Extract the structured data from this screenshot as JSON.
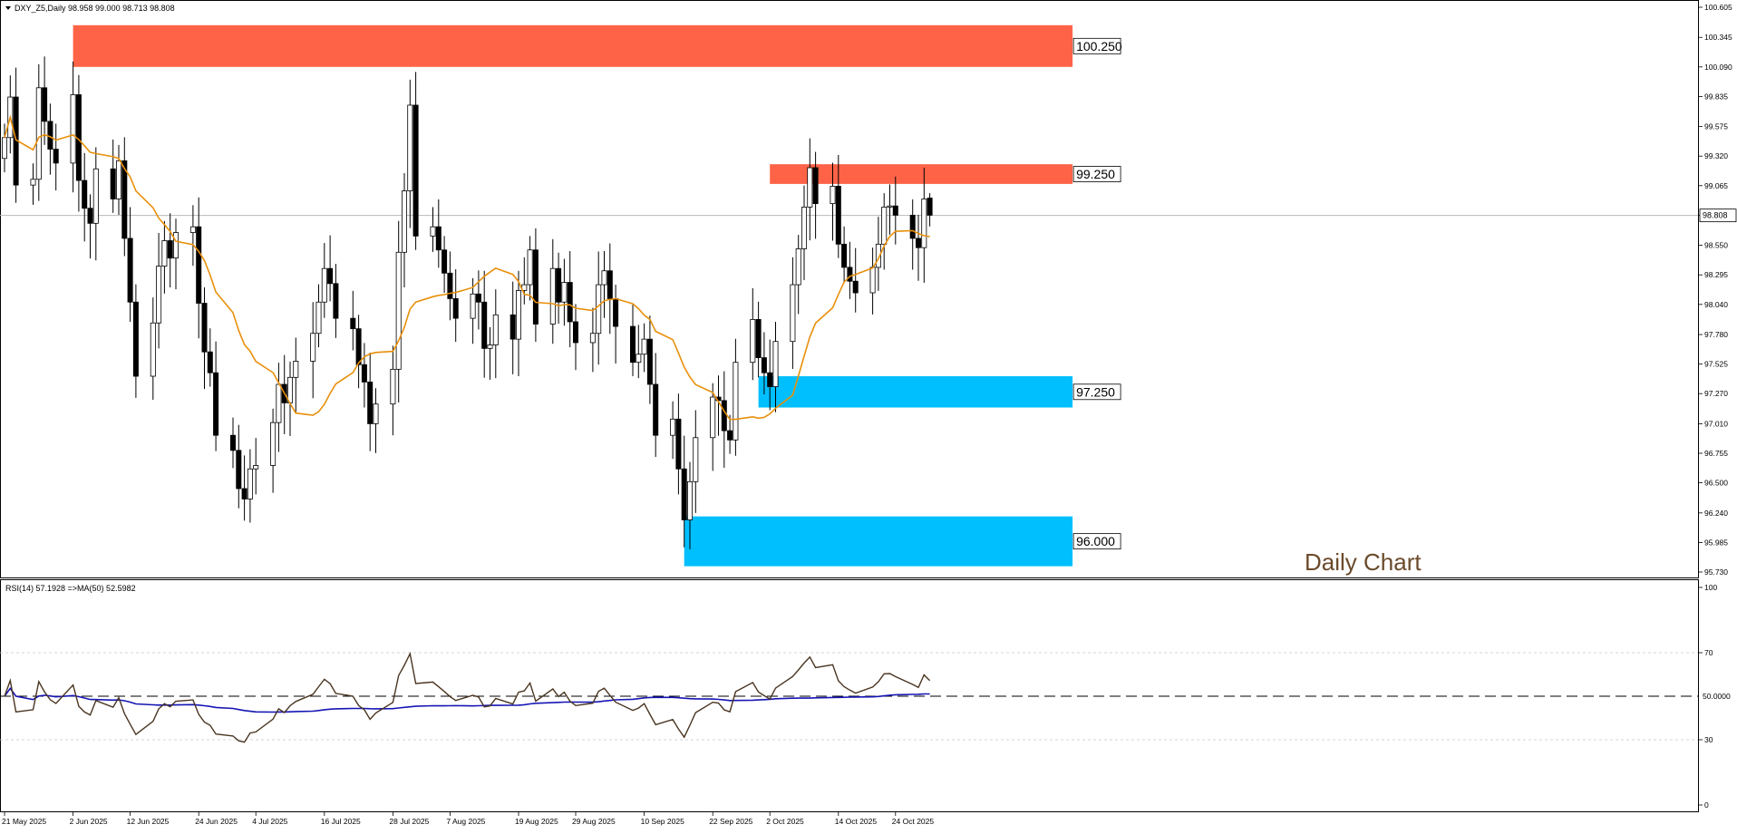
{
  "main": {
    "info": "DXY_Z5,Daily  98.958 99.000 98.713 98.808",
    "watermark": "Daily Chart",
    "current_price_label": "98.808",
    "yticks": [
      "100.605",
      "100.345",
      "100.090",
      "99.835",
      "99.575",
      "99.320",
      "99.065",
      "98.808",
      "98.550",
      "98.295",
      "98.040",
      "97.780",
      "97.525",
      "97.270",
      "97.010",
      "96.755",
      "96.500",
      "96.240",
      "95.985",
      "95.730"
    ]
  },
  "zones": [
    {
      "label": "100.250",
      "color": "#ff6347",
      "low": 100.09,
      "high": 100.45,
      "start_date": "2025-06-02",
      "end_date": "2025-11-24"
    },
    {
      "label": "99.250",
      "color": "#ff6347",
      "low": 99.08,
      "high": 99.25,
      "start_date": "2025-10-02",
      "end_date": "2025-11-24"
    },
    {
      "label": "97.250",
      "color": "#00bfff",
      "low": 97.15,
      "high": 97.42,
      "start_date": "2025-09-30",
      "end_date": "2025-11-24"
    },
    {
      "label": "96.000",
      "color": "#00bfff",
      "low": 95.78,
      "high": 96.21,
      "start_date": "2025-09-17",
      "end_date": "2025-11-24"
    }
  ],
  "rsi_panel": {
    "info": "RSI(14) 57.1928  =>MA(50) 52.5982",
    "level_label": "50.0000",
    "yticks": [
      "100",
      "70",
      "30",
      "0"
    ],
    "colors": {
      "rsi": "#4a3521",
      "ma": "#1515b5"
    }
  },
  "xaxis": {
    "labels": [
      "21 May 2025",
      "2 Jun 2025",
      "12 Jun 2025",
      "24 Jun 2025",
      "4 Jul 2025",
      "16 Jul 2025",
      "28 Jul 2025",
      "7 Aug 2025",
      "19 Aug 2025",
      "29 Aug 2025",
      "10 Sep 2025",
      "22 Sep 2025",
      "2 Oct 2025",
      "14 Oct 2025",
      "24 Oct 2025"
    ]
  },
  "colors": {
    "bull": "#ffffff",
    "bear": "#000000",
    "ma": "#e8900c",
    "grid": "#c8c8c8"
  },
  "chart_data": [
    {
      "type": "candlestick",
      "symbol": "DXY_Z5",
      "timeframe": "Daily",
      "ylim": [
        95.73,
        100.605
      ],
      "last": {
        "open": 98.958,
        "high": 99.0,
        "low": 98.713,
        "close": 98.808
      },
      "x": [
        "2025-05-21",
        "2025-05-22",
        "2025-05-23",
        "2025-05-26",
        "2025-05-27",
        "2025-05-28",
        "2025-05-29",
        "2025-05-30",
        "2025-06-02",
        "2025-06-03",
        "2025-06-04",
        "2025-06-05",
        "2025-06-06",
        "2025-06-09",
        "2025-06-10",
        "2025-06-11",
        "2025-06-12",
        "2025-06-13",
        "2025-06-16",
        "2025-06-17",
        "2025-06-18",
        "2025-06-19",
        "2025-06-20",
        "2025-06-23",
        "2025-06-24",
        "2025-06-25",
        "2025-06-26",
        "2025-06-27",
        "2025-06-30",
        "2025-07-01",
        "2025-07-02",
        "2025-07-03",
        "2025-07-04",
        "2025-07-07",
        "2025-07-08",
        "2025-07-09",
        "2025-07-10",
        "2025-07-11",
        "2025-07-14",
        "2025-07-15",
        "2025-07-16",
        "2025-07-17",
        "2025-07-18",
        "2025-07-21",
        "2025-07-22",
        "2025-07-23",
        "2025-07-24",
        "2025-07-25",
        "2025-07-28",
        "2025-07-29",
        "2025-07-30",
        "2025-07-31",
        "2025-08-01",
        "2025-08-04",
        "2025-08-05",
        "2025-08-06",
        "2025-08-07",
        "2025-08-08",
        "2025-08-11",
        "2025-08-12",
        "2025-08-13",
        "2025-08-14",
        "2025-08-15",
        "2025-08-18",
        "2025-08-19",
        "2025-08-20",
        "2025-08-21",
        "2025-08-22",
        "2025-08-25",
        "2025-08-26",
        "2025-08-27",
        "2025-08-28",
        "2025-08-29",
        "2025-09-01",
        "2025-09-02",
        "2025-09-03",
        "2025-09-04",
        "2025-09-05",
        "2025-09-08",
        "2025-09-09",
        "2025-09-10",
        "2025-09-11",
        "2025-09-12",
        "2025-09-15",
        "2025-09-16",
        "2025-09-17",
        "2025-09-18",
        "2025-09-19",
        "2025-09-22",
        "2025-09-23",
        "2025-09-24",
        "2025-09-25",
        "2025-09-26",
        "2025-09-29",
        "2025-09-30",
        "2025-10-01",
        "2025-10-02",
        "2025-10-03",
        "2025-10-06",
        "2025-10-07",
        "2025-10-08",
        "2025-10-09",
        "2025-10-10",
        "2025-10-13",
        "2025-10-14",
        "2025-10-15",
        "2025-10-16",
        "2025-10-17",
        "2025-10-20",
        "2025-10-21",
        "2025-10-22",
        "2025-10-23",
        "2025-10-24",
        "2025-10-27",
        "2025-10-28",
        "2025-10-29",
        "2025-10-30"
      ],
      "close": [
        99.48,
        99.83,
        99.07,
        99.12,
        99.91,
        99.62,
        99.38,
        99.26,
        99.85,
        99.11,
        98.87,
        98.74,
        99.21,
        98.95,
        99.28,
        98.61,
        98.06,
        97.42,
        97.88,
        98.37,
        98.59,
        98.44,
        98.66,
        98.71,
        98.05,
        97.63,
        97.45,
        96.91,
        96.78,
        96.45,
        96.36,
        96.62,
        96.65,
        97.02,
        97.35,
        97.19,
        97.41,
        97.55,
        97.79,
        98.06,
        98.35,
        98.22,
        97.92,
        97.83,
        97.52,
        97.37,
        97.01,
        97.18,
        97.48,
        98.49,
        99.02,
        99.76,
        98.63,
        98.71,
        98.51,
        98.31,
        98.09,
        97.92,
        98.13,
        98.06,
        97.66,
        97.69,
        97.95,
        97.74,
        98.16,
        98.21,
        98.51,
        97.87,
        98.35,
        98.06,
        98.23,
        97.89,
        97.71,
        97.79,
        98.21,
        98.33,
        98.09,
        97.85,
        97.54,
        97.61,
        97.74,
        97.35,
        96.91,
        97.05,
        96.62,
        96.18,
        96.51,
        96.89,
        97.24,
        97.21,
        96.95,
        96.87,
        97.54,
        97.91,
        97.58,
        97.45,
        97.33,
        97.72,
        98.21,
        98.52,
        98.88,
        99.22,
        98.91,
        99.06,
        98.56,
        98.36,
        98.24,
        98.14,
        98.36,
        98.56,
        98.88,
        98.89,
        98.81,
        98.61,
        98.53,
        98.95,
        98.81
      ]
    },
    {
      "type": "line",
      "name": "RSI(14)",
      "value": 57.1928,
      "ma_name": "MA(50)",
      "ma_value": 52.5982,
      "levels": [
        70,
        50,
        30
      ],
      "ylim": [
        0,
        100
      ]
    }
  ]
}
